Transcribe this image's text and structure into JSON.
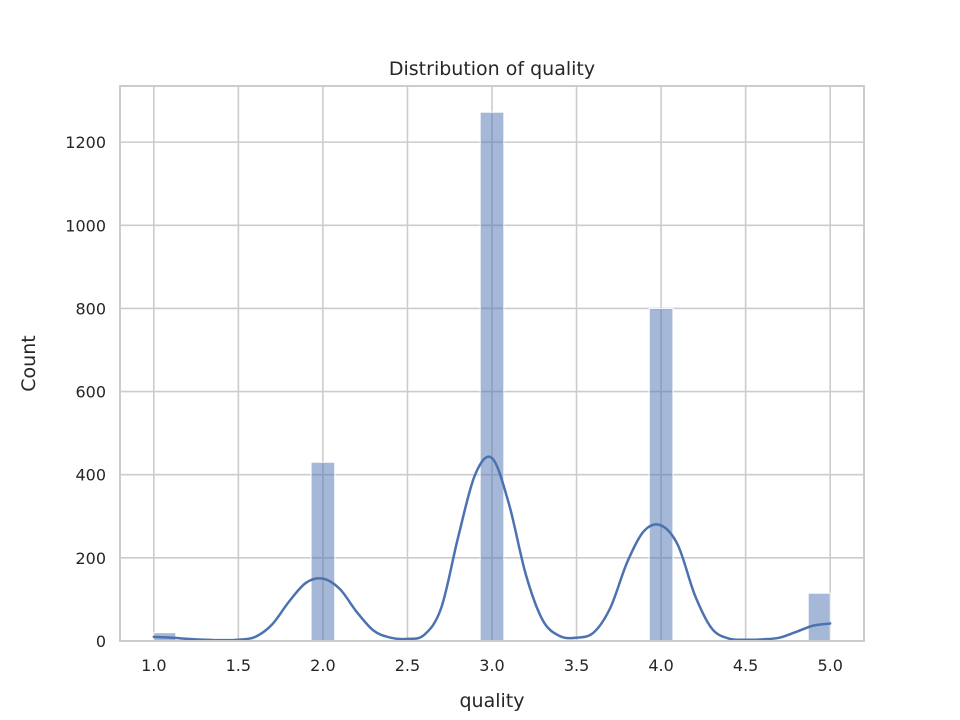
{
  "chart_data": {
    "type": "bar",
    "subtype": "histogram-with-kde",
    "title": "Distribution of quality",
    "xlabel": "quality",
    "ylabel": "Count",
    "xlim": [
      0.8,
      5.2
    ],
    "ylim": [
      0,
      1335
    ],
    "xticks": [
      1.0,
      1.5,
      2.0,
      2.5,
      3.0,
      3.5,
      4.0,
      4.5,
      5.0
    ],
    "xtick_labels": [
      "1.0",
      "1.5",
      "2.0",
      "2.5",
      "3.0",
      "3.5",
      "4.0",
      "4.5",
      "5.0"
    ],
    "yticks": [
      0,
      200,
      400,
      600,
      800,
      1000,
      1200
    ],
    "ytick_labels": [
      "0",
      "200",
      "400",
      "600",
      "800",
      "1000",
      "1200"
    ],
    "grid": true,
    "bar_color": "#4c72b0",
    "bins": [
      {
        "x0": 1.0,
        "x1": 1.13,
        "count": 20
      },
      {
        "x0": 1.93,
        "x1": 2.07,
        "count": 430
      },
      {
        "x0": 2.93,
        "x1": 3.07,
        "count": 1272
      },
      {
        "x0": 3.93,
        "x1": 4.07,
        "count": 800
      },
      {
        "x0": 4.87,
        "x1": 5.0,
        "count": 115
      }
    ],
    "kde": {
      "x": [
        1.0,
        1.1,
        1.2,
        1.3,
        1.4,
        1.5,
        1.6,
        1.7,
        1.8,
        1.9,
        2.0,
        2.1,
        2.2,
        2.3,
        2.4,
        2.5,
        2.6,
        2.7,
        2.8,
        2.9,
        3.0,
        3.1,
        3.2,
        3.3,
        3.4,
        3.5,
        3.6,
        3.7,
        3.8,
        3.9,
        4.0,
        4.1,
        4.2,
        4.3,
        4.4,
        4.5,
        4.6,
        4.7,
        4.8,
        4.9,
        5.0
      ],
      "y": [
        10,
        8,
        5,
        3,
        2,
        3,
        10,
        40,
        95,
        140,
        150,
        125,
        70,
        25,
        8,
        5,
        15,
        80,
        250,
        400,
        440,
        330,
        160,
        50,
        12,
        8,
        20,
        80,
        190,
        265,
        278,
        230,
        110,
        30,
        6,
        3,
        4,
        8,
        22,
        37,
        42
      ]
    }
  }
}
